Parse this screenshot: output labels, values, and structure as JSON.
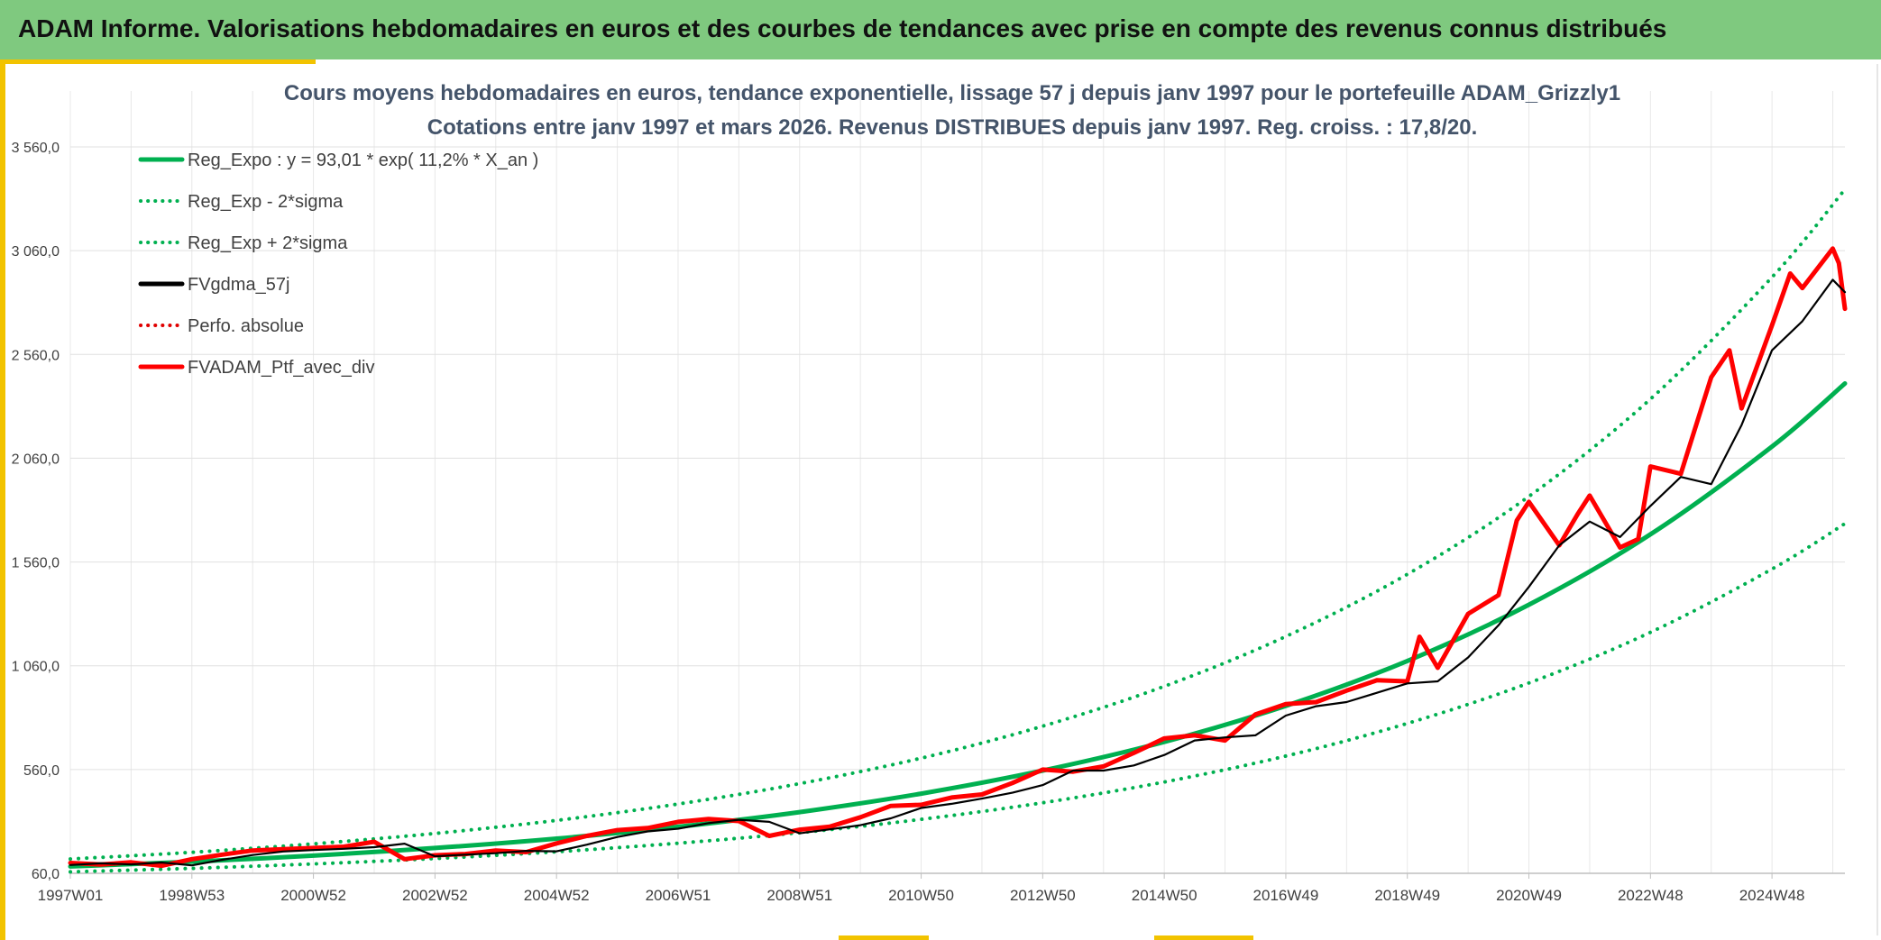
{
  "header": {
    "title": "ADAM Informe. Valorisations hebdomadaires en euros et des courbes de tendances avec prise en compte des revenus connus distribués"
  },
  "colors": {
    "header_bg": "#7fc97f",
    "accent": "#f2c300",
    "reg": "#00b050",
    "smooth": "#000000",
    "ptf": "#ff0000",
    "perfo": "#e00000"
  },
  "chart_data": {
    "type": "line",
    "title": "Cours moyens hebdomadaires en euros, tendance exponentielle, lissage 57 j depuis janv 1997 pour le portefeuille ADAM_Grizzly1",
    "subtitle": "Cotations entre janv 1997 et mars 2026. Revenus DISTRIBUES depuis janv 1997. Reg. croiss. : 17,8/20.",
    "ylim": [
      60,
      3560
    ],
    "yticks": [
      "60,0",
      "560,0",
      "1 060,0",
      "1 560,0",
      "2 060,0",
      "2 560,0",
      "3 060,0",
      "3 560,0"
    ],
    "xlim": [
      1997.0,
      2026.2
    ],
    "xticks": [
      {
        "label": "1997W01",
        "year": 1997.0
      },
      {
        "label": "1998W53",
        "year": 1999.0
      },
      {
        "label": "2000W52",
        "year": 2001.0
      },
      {
        "label": "2002W52",
        "year": 2003.0
      },
      {
        "label": "2004W52",
        "year": 2005.0
      },
      {
        "label": "2006W51",
        "year": 2007.0
      },
      {
        "label": "2008W51",
        "year": 2009.0
      },
      {
        "label": "2010W50",
        "year": 2011.0
      },
      {
        "label": "2012W50",
        "year": 2013.0
      },
      {
        "label": "2014W50",
        "year": 2015.0
      },
      {
        "label": "2016W49",
        "year": 2017.0
      },
      {
        "label": "2018W49",
        "year": 2019.0
      },
      {
        "label": "2020W49",
        "year": 2021.0
      },
      {
        "label": "2022W48",
        "year": 2023.0
      },
      {
        "label": "2024W48",
        "year": 2025.0
      }
    ],
    "grid": true,
    "legend_position": "top-left",
    "series": [
      {
        "name": "Reg_Expo : y = 93,01 * exp( 11,2% *  X_an )",
        "style": "solid",
        "color": "#00b050",
        "x": [
          1997.0,
          1999.0,
          2001.0,
          2003.0,
          2005.0,
          2007.0,
          2009.0,
          2011.0,
          2013.0,
          2015.0,
          2017.0,
          2019.0,
          2021.0,
          2023.0,
          2025.0,
          2026.2
        ],
        "y": [
          93,
          116,
          145,
          182,
          227,
          284,
          355,
          444,
          555,
          693,
          867,
          1083,
          1354,
          1693,
          2116,
          2420
        ]
      },
      {
        "name": "Reg_Exp - 2*sigma",
        "style": "dotted",
        "color": "#00b050",
        "x": [
          1997.0,
          1999.0,
          2001.0,
          2003.0,
          2005.0,
          2007.0,
          2009.0,
          2011.0,
          2013.0,
          2015.0,
          2017.0,
          2019.0,
          2021.0,
          2023.0,
          2025.0,
          2026.2
        ],
        "y": [
          67,
          84,
          105,
          131,
          164,
          205,
          256,
          320,
          400,
          500,
          625,
          782,
          977,
          1221,
          1526,
          1745
        ]
      },
      {
        "name": "Reg_Exp + 2*sigma",
        "style": "dotted",
        "color": "#00b050",
        "x": [
          1997.0,
          1999.0,
          2001.0,
          2003.0,
          2005.0,
          2007.0,
          2009.0,
          2011.0,
          2013.0,
          2015.0,
          2017.0,
          2019.0,
          2021.0,
          2023.0,
          2025.0,
          2026.2
        ],
        "y": [
          129,
          161,
          202,
          252,
          315,
          394,
          492,
          615,
          769,
          961,
          1201,
          1501,
          1876,
          2345,
          2932,
          3355
        ]
      },
      {
        "name": "FVgdma_57j",
        "style": "solid",
        "color": "#000000",
        "x": [
          1997.0,
          1997.5,
          1998.0,
          1998.5,
          1999.0,
          1999.5,
          2000.0,
          2000.5,
          2001.0,
          2001.5,
          2002.0,
          2002.5,
          2003.0,
          2003.5,
          2004.0,
          2004.5,
          2005.0,
          2005.5,
          2006.0,
          2006.5,
          2007.0,
          2007.5,
          2008.0,
          2008.5,
          2009.0,
          2009.5,
          2010.0,
          2010.5,
          2011.0,
          2011.5,
          2012.0,
          2012.5,
          2013.0,
          2013.5,
          2014.0,
          2014.5,
          2015.0,
          2015.5,
          2016.0,
          2016.5,
          2017.0,
          2017.5,
          2018.0,
          2018.5,
          2019.0,
          2019.5,
          2020.0,
          2020.5,
          2021.0,
          2021.5,
          2022.0,
          2022.5,
          2023.0,
          2023.5,
          2024.0,
          2024.5,
          2025.0,
          2025.5,
          2026.0,
          2026.2
        ],
        "y": [
          100,
          108,
          103,
          112,
          98,
          125,
          148,
          165,
          172,
          178,
          186,
          203,
          142,
          150,
          157,
          168,
          166,
          198,
          235,
          262,
          275,
          302,
          318,
          308,
          253,
          272,
          292,
          325,
          375,
          395,
          420,
          448,
          485,
          555,
          555,
          580,
          630,
          700,
          715,
          725,
          820,
          865,
          885,
          930,
          975,
          985,
          1100,
          1255,
          1440,
          1640,
          1755,
          1680,
          1830,
          1970,
          1935,
          2220,
          2580,
          2720,
          2920,
          2860
        ]
      },
      {
        "name": "Perfo. absolue",
        "style": "dotted",
        "color": "#e00000",
        "x": [],
        "y": []
      },
      {
        "name": "FVADAM_Ptf_avec_div",
        "style": "solid",
        "color": "#ff0000",
        "x": [
          1997.0,
          1997.5,
          1998.0,
          1998.5,
          1999.0,
          1999.5,
          2000.0,
          2000.5,
          2001.0,
          2001.5,
          2002.0,
          2002.5,
          2003.0,
          2003.5,
          2004.0,
          2004.5,
          2005.0,
          2005.5,
          2006.0,
          2006.5,
          2007.0,
          2007.5,
          2008.0,
          2008.5,
          2009.0,
          2009.5,
          2010.0,
          2010.5,
          2011.0,
          2011.5,
          2012.0,
          2012.5,
          2013.0,
          2013.5,
          2014.0,
          2014.5,
          2015.0,
          2015.5,
          2016.0,
          2016.5,
          2017.0,
          2017.5,
          2018.0,
          2018.5,
          2019.0,
          2019.2,
          2019.5,
          2020.0,
          2020.5,
          2020.8,
          2021.0,
          2021.5,
          2021.8,
          2022.0,
          2022.5,
          2022.8,
          2023.0,
          2023.5,
          2024.0,
          2024.3,
          2024.5,
          2025.0,
          2025.3,
          2025.5,
          2026.0,
          2026.1,
          2026.2
        ],
        "y": [
          110,
          102,
          113,
          96,
          128,
          150,
          170,
          176,
          182,
          188,
          212,
          128,
          147,
          153,
          170,
          162,
          204,
          240,
          268,
          278,
          308,
          322,
          312,
          240,
          270,
          285,
          330,
          385,
          390,
          425,
          440,
          495,
          560,
          550,
          575,
          640,
          710,
          725,
          700,
          825,
          875,
          885,
          940,
          990,
          985,
          1200,
          1050,
          1310,
          1400,
          1760,
          1850,
          1640,
          1790,
          1880,
          1630,
          1670,
          2020,
          1985,
          2450,
          2580,
          2300,
          2700,
          2950,
          2880,
          3070,
          3000,
          2780
        ]
      }
    ]
  }
}
